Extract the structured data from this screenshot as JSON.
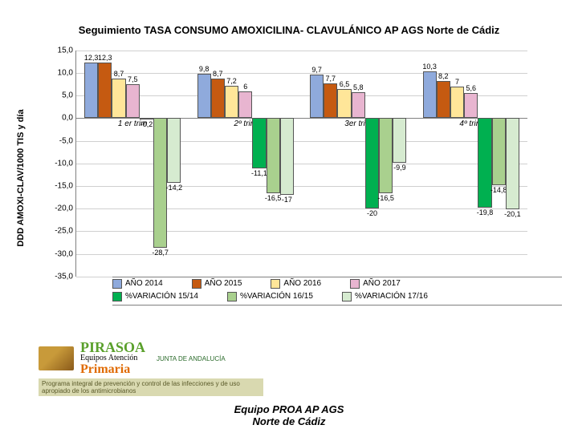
{
  "title": "Seguimiento TASA CONSUMO AMOXICILINA- CLAVULÁNICO AP AGS Norte de Cádiz",
  "y_axis_label": "DDD AMOXI-CLAV/1000 TIS y día",
  "footer": "Equipo PROA  AP  AGS\nNorte de Cádiz",
  "logo": {
    "brand": "PIRASOA",
    "line1": "Equipos Atención",
    "line2": "Primaria",
    "junta": "JUNTA DE ANDALUCÍA",
    "strapline": "Programa integral de prevención y control de las infecciones y de uso apropiado de los antimicrobianos"
  },
  "chart": {
    "type": "bar",
    "y_min": -35.0,
    "y_max": 15.0,
    "y_tick_step": 5.0,
    "y_ticks": [
      "15,0",
      "10,0",
      "5,0",
      "0,0",
      "-5,0",
      "-10,0",
      "-15,0",
      "-20,0",
      "-25,0",
      "-30,0",
      "-35,0"
    ],
    "grid_color": "#d0d0d0",
    "background_color": "#ffffff",
    "categories": [
      "1 er trim",
      "2º trim",
      "3er trim",
      "4º trim"
    ],
    "series": [
      {
        "name": "AÑO 2014",
        "color": "#8faadc",
        "values": [
          12.3,
          9.8,
          9.7,
          10.3
        ],
        "show_labels": [
          true,
          true,
          true,
          true
        ]
      },
      {
        "name": "AÑO 2015",
        "color": "#c55a11",
        "values": [
          12.3,
          8.7,
          7.7,
          8.2
        ],
        "show_labels": [
          true,
          true,
          true,
          true
        ]
      },
      {
        "name": "AÑO 2016",
        "color": "#ffe699",
        "values": [
          8.7,
          7.2,
          6.5,
          7.0
        ],
        "show_labels": [
          true,
          true,
          true,
          true
        ]
      },
      {
        "name": "AÑO 2017",
        "color": "#e8b5d0",
        "values": [
          7.5,
          6.0,
          5.8,
          5.6
        ],
        "show_labels": [
          true,
          true,
          true,
          true
        ]
      },
      {
        "name": "%VARIACIÓN 15/14",
        "color": "#00b050",
        "values": [
          -0.2,
          -11.1,
          -20.0,
          -19.8
        ],
        "show_labels": [
          true,
          true,
          true,
          true
        ]
      },
      {
        "name": "%VARIACIÓN 16/15",
        "color": "#a9d08e",
        "values": [
          -28.7,
          -16.5,
          -16.5,
          -14.8
        ],
        "show_labels": [
          true,
          true,
          true,
          true
        ]
      },
      {
        "name": "%VARIACIÓN 17/16",
        "color": "#d6ebd0",
        "values": [
          -14.2,
          -17.0,
          -9.9,
          -20.1
        ],
        "show_labels": [
          true,
          true,
          true,
          true
        ]
      }
    ],
    "legend_rows": [
      [
        0,
        1,
        2,
        3
      ],
      [
        4,
        5,
        6
      ]
    ],
    "title_fontsize": 13,
    "label_fontsize": 9,
    "tick_fontsize": 10
  }
}
